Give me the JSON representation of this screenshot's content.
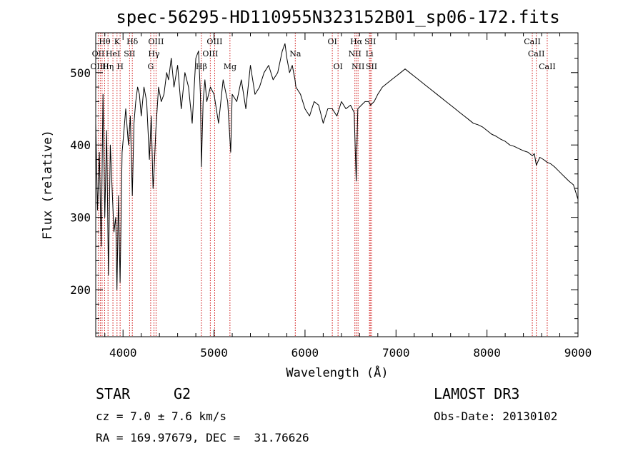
{
  "chart_data": {
    "type": "line",
    "title": "spec-56295-HD110955N323152B01_sp06-172.fits",
    "xlabel": "Wavelength (Å)",
    "ylabel": "Flux (relative)",
    "xlim": [
      3700,
      9000
    ],
    "ylim": [
      135,
      555
    ],
    "xticks": [
      4000,
      5000,
      6000,
      7000,
      8000,
      9000
    ],
    "yticks": [
      200,
      300,
      400,
      500
    ],
    "series": [
      {
        "name": "spectrum",
        "x": [
          3700,
          3720,
          3740,
          3760,
          3780,
          3800,
          3820,
          3840,
          3860,
          3880,
          3900,
          3920,
          3933,
          3950,
          3968,
          3990,
          4010,
          4030,
          4060,
          4080,
          4102,
          4120,
          4140,
          4160,
          4180,
          4200,
          4230,
          4260,
          4290,
          4310,
          4330,
          4340,
          4360,
          4390,
          4420,
          4450,
          4480,
          4500,
          4530,
          4560,
          4600,
          4640,
          4680,
          4720,
          4760,
          4800,
          4830,
          4850,
          4861,
          4880,
          4900,
          4920,
          4960,
          5000,
          5050,
          5100,
          5150,
          5183,
          5200,
          5250,
          5300,
          5350,
          5400,
          5450,
          5500,
          5550,
          5600,
          5650,
          5700,
          5750,
          5780,
          5800,
          5830,
          5860,
          5890,
          5900,
          5950,
          6000,
          6050,
          6100,
          6150,
          6200,
          6250,
          6300,
          6350,
          6400,
          6450,
          6500,
          6540,
          6563,
          6580,
          6620,
          6660,
          6700,
          6720,
          6760,
          6800,
          6850,
          6900,
          6950,
          7000,
          7050,
          7100,
          7150,
          7200,
          7250,
          7300,
          7350,
          7400,
          7450,
          7500,
          7550,
          7600,
          7650,
          7700,
          7750,
          7800,
          7850,
          7900,
          7950,
          8000,
          8050,
          8100,
          8150,
          8200,
          8250,
          8300,
          8350,
          8400,
          8450,
          8498,
          8520,
          8542,
          8580,
          8620,
          8662,
          8700,
          8740,
          8780,
          8820,
          8860,
          8900,
          8950,
          9000
        ],
        "y": [
          430,
          310,
          390,
          260,
          470,
          300,
          420,
          220,
          400,
          340,
          280,
          300,
          200,
          330,
          210,
          390,
          420,
          450,
          400,
          440,
          330,
          430,
          460,
          480,
          470,
          440,
          480,
          460,
          380,
          440,
          340,
          360,
          420,
          480,
          460,
          470,
          500,
          490,
          520,
          480,
          510,
          450,
          500,
          480,
          430,
          520,
          530,
          470,
          370,
          460,
          490,
          460,
          480,
          470,
          430,
          490,
          460,
          390,
          470,
          460,
          490,
          450,
          510,
          470,
          480,
          500,
          510,
          490,
          500,
          530,
          540,
          520,
          500,
          510,
          490,
          480,
          470,
          450,
          440,
          460,
          455,
          430,
          450,
          450,
          440,
          460,
          450,
          455,
          445,
          350,
          450,
          455,
          460,
          460,
          455,
          460,
          470,
          480,
          485,
          490,
          495,
          500,
          505,
          500,
          495,
          490,
          485,
          480,
          475,
          470,
          465,
          460,
          455,
          450,
          445,
          440,
          435,
          430,
          428,
          425,
          420,
          415,
          412,
          408,
          405,
          400,
          398,
          395,
          392,
          390,
          385,
          388,
          372,
          383,
          380,
          376,
          374,
          370,
          365,
          360,
          355,
          350,
          345,
          325
        ]
      }
    ],
    "spectral_lines": [
      {
        "label": "Hθ",
        "wave": 3798,
        "row": 0
      },
      {
        "label": "K",
        "wave": 3934,
        "row": 0
      },
      {
        "label": "Hδ",
        "wave": 4102,
        "row": 0
      },
      {
        "label": "OIII",
        "wave": 4363,
        "row": 0
      },
      {
        "label": "OIII",
        "wave": 5007,
        "row": 0
      },
      {
        "label": "OI",
        "wave": 6300,
        "row": 0
      },
      {
        "label": "Hα",
        "wave": 6563,
        "row": 0
      },
      {
        "label": "SII",
        "wave": 6717,
        "row": 0
      },
      {
        "label": "CaII",
        "wave": 8498,
        "row": 0
      },
      {
        "label": "OII",
        "wave": 3727,
        "row": 1
      },
      {
        "label": "HeI",
        "wave": 3889,
        "row": 1
      },
      {
        "label": "SII",
        "wave": 4072,
        "row": 1
      },
      {
        "label": "Hγ",
        "wave": 4340,
        "row": 1
      },
      {
        "label": "OIII",
        "wave": 4959,
        "row": 1
      },
      {
        "label": "Na",
        "wave": 5893,
        "row": 1
      },
      {
        "label": "NII",
        "wave": 6548,
        "row": 1
      },
      {
        "label": "Li",
        "wave": 6708,
        "row": 1
      },
      {
        "label": "CaII",
        "wave": 8542,
        "row": 1
      },
      {
        "label": "OIII",
        "wave": 3727,
        "row": 2
      },
      {
        "label": "Hη",
        "wave": 3835,
        "row": 2
      },
      {
        "label": "H",
        "wave": 3968,
        "row": 2
      },
      {
        "label": "G",
        "wave": 4304,
        "row": 2
      },
      {
        "label": "Hβ",
        "wave": 4861,
        "row": 2
      },
      {
        "label": "Mg",
        "wave": 5175,
        "row": 2
      },
      {
        "label": "OI",
        "wave": 6363,
        "row": 2
      },
      {
        "label": "NII",
        "wave": 6583,
        "row": 2
      },
      {
        "label": "SII",
        "wave": 6731,
        "row": 2
      },
      {
        "label": "CaII",
        "wave": 8662,
        "row": 2
      }
    ],
    "line_wavelengths": [
      3727,
      3750,
      3770,
      3798,
      3835,
      3889,
      3934,
      3968,
      4072,
      4102,
      4304,
      4340,
      4363,
      4861,
      4959,
      5007,
      5175,
      5893,
      6300,
      6363,
      6548,
      6563,
      6583,
      6708,
      6717,
      6731,
      8498,
      8542,
      8662
    ],
    "colors": {
      "line": "#000000",
      "markers": "#cc0000"
    }
  },
  "info": {
    "object_class": "STAR",
    "subclass": "G2",
    "survey": "LAMOST DR3",
    "cz": "cz = 7.0 ± 7.6 km/s",
    "obs_date": "Obs-Date: 20130102",
    "coords": "RA = 169.97679, DEC =  31.76626"
  }
}
